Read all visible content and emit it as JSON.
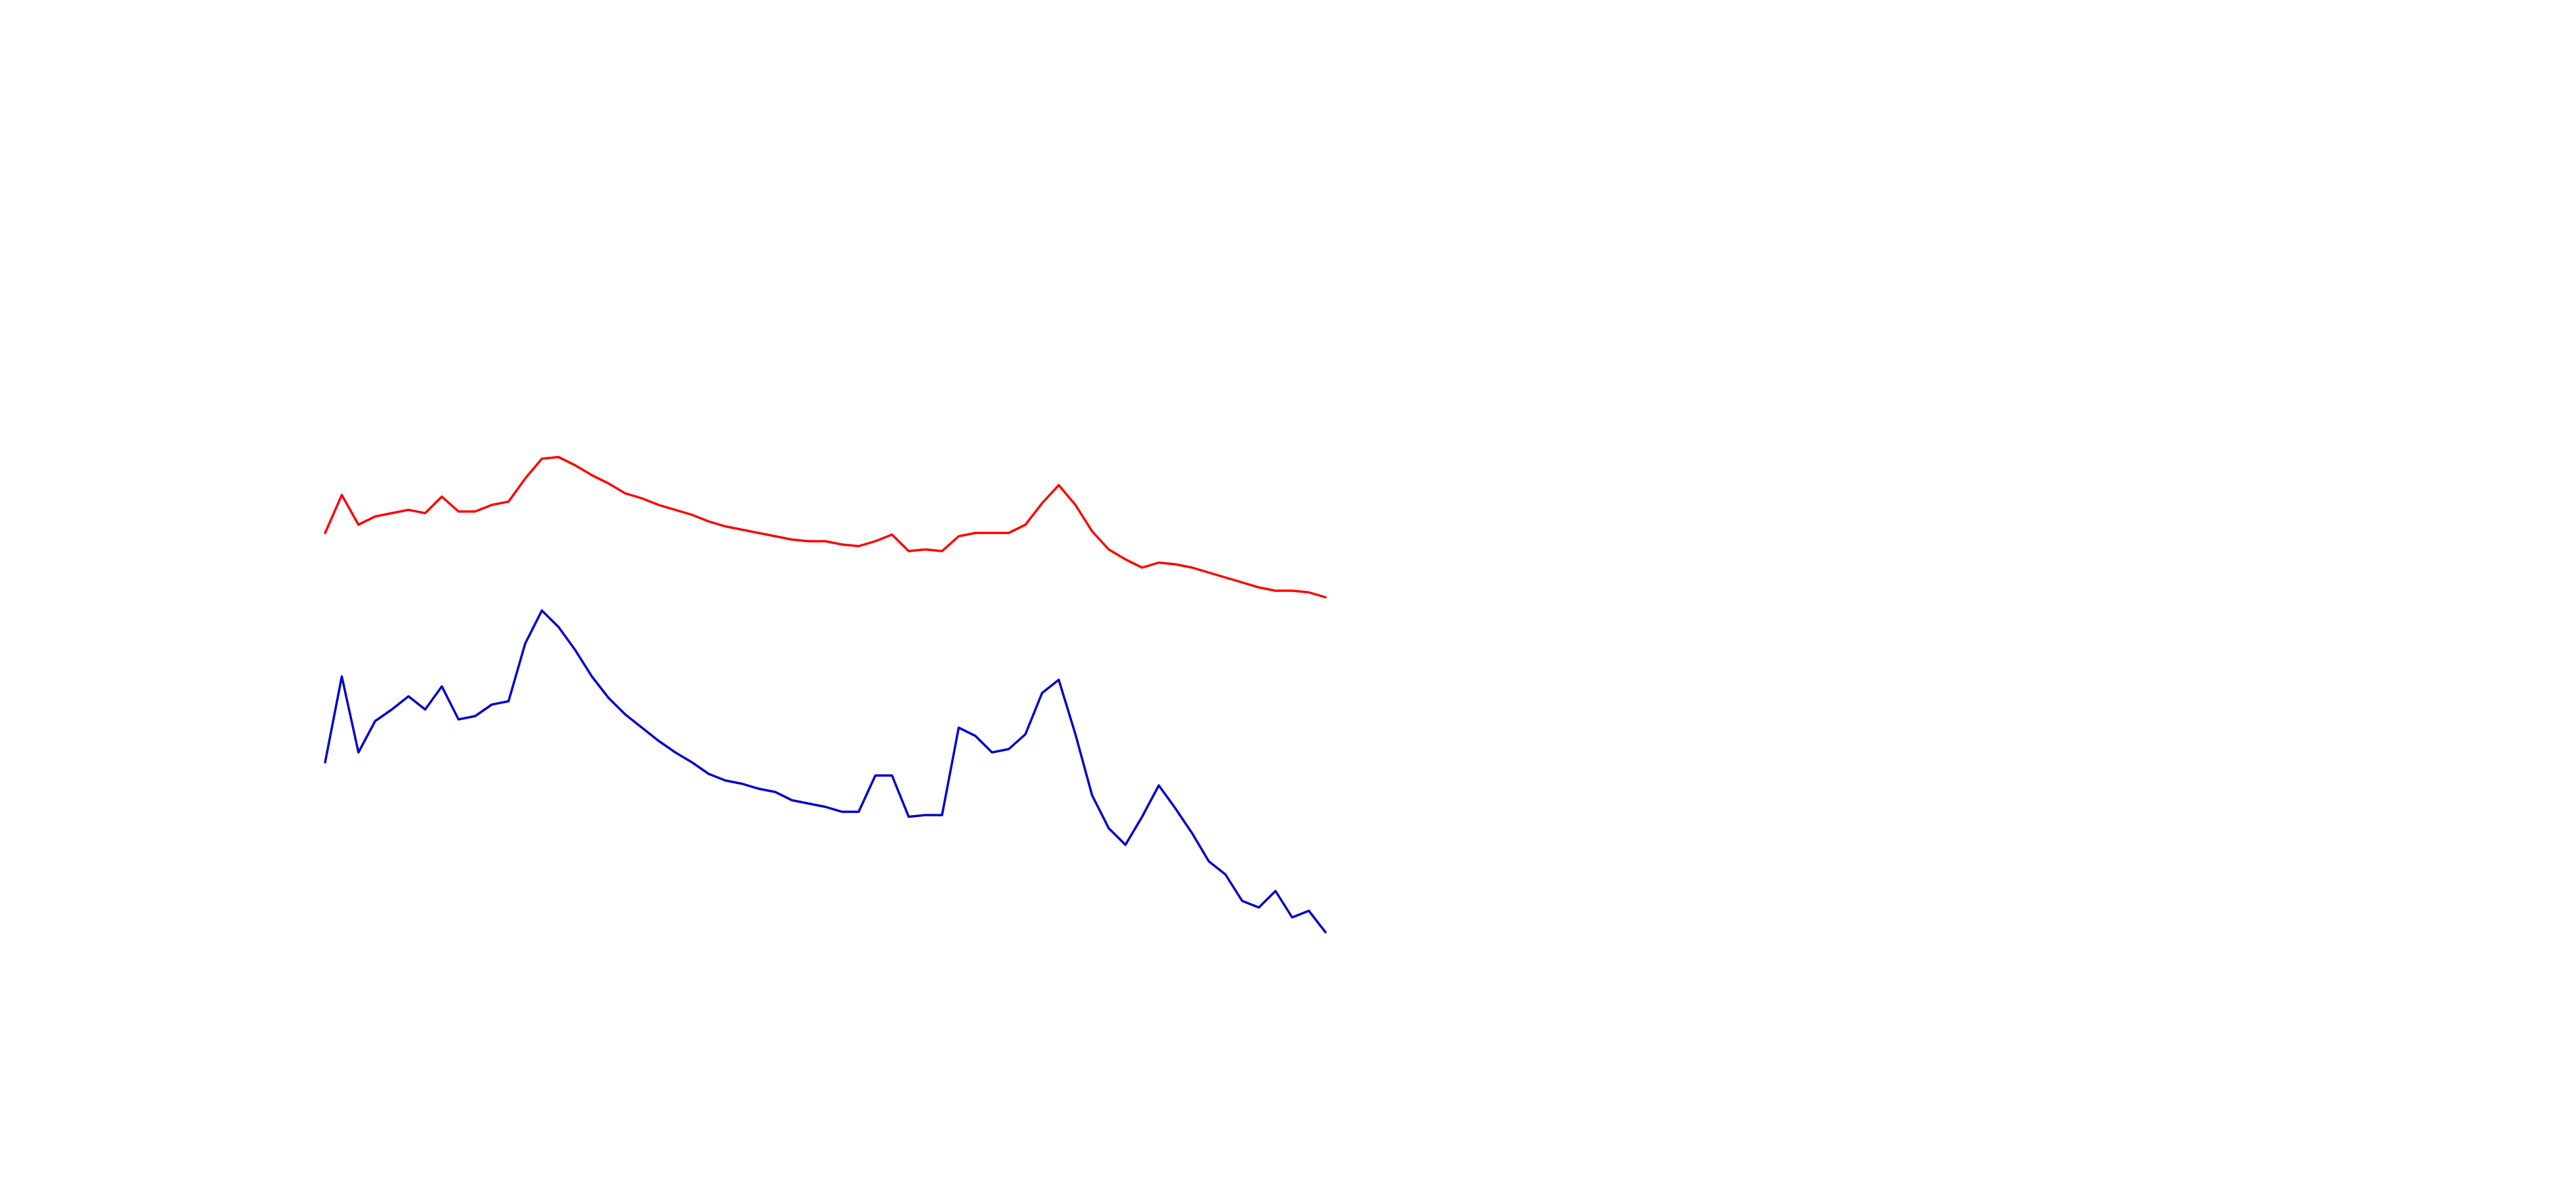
{
  "chart_data": {
    "type": "line",
    "x": [
      0,
      1,
      2,
      3,
      4,
      5,
      6,
      7,
      8,
      9,
      10,
      11,
      12,
      13,
      14,
      15,
      16,
      17,
      18,
      19,
      20,
      21,
      22,
      23,
      24,
      25,
      26,
      27,
      28,
      29,
      30,
      31,
      32,
      33,
      34,
      35,
      36,
      37,
      38,
      39,
      40,
      41,
      42,
      43,
      44,
      45,
      46,
      47,
      48,
      49,
      50,
      51,
      52,
      53,
      54,
      55,
      56,
      57,
      58,
      59,
      60
    ],
    "xlim": [
      -19.5,
      135
    ],
    "ylim": [
      0,
      720
    ],
    "series": [
      {
        "color": "#ff0000",
        "values": [
          397,
          420,
          402,
          407,
          409,
          411,
          409,
          419,
          410,
          410,
          414,
          416,
          430,
          442,
          443,
          438,
          432,
          427,
          421,
          418,
          414,
          411,
          408,
          404,
          401,
          399,
          397,
          395,
          393,
          392,
          392,
          390,
          389,
          392,
          396,
          386,
          387,
          386,
          395,
          397,
          397,
          397,
          402,
          415,
          426,
          414,
          398,
          387,
          381,
          376,
          379,
          378,
          376,
          373,
          370,
          367,
          364,
          362,
          362,
          361,
          358
        ]
      },
      {
        "color": "#0000cd",
        "values": [
          258,
          310,
          264,
          283,
          290,
          298,
          290,
          304,
          284,
          286,
          293,
          295,
          330,
          350,
          340,
          326,
          310,
          297,
          287,
          279,
          271,
          264,
          258,
          251,
          247,
          245,
          242,
          240,
          235,
          233,
          231,
          228,
          228,
          250,
          250,
          225,
          226,
          226,
          279,
          274,
          264,
          266,
          275,
          300,
          308,
          275,
          238,
          218,
          208,
          225,
          244,
          230,
          215,
          198,
          190,
          174,
          170,
          180,
          164,
          168,
          155
        ]
      }
    ]
  }
}
